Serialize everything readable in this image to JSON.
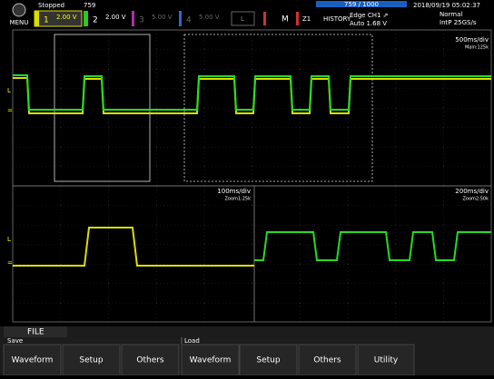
{
  "header": {
    "menu": "MENU",
    "state": "Stopped",
    "count": "759",
    "channels": [
      {
        "num": "1",
        "scale": "2.00 V"
      },
      {
        "num": "2",
        "scale": "2.00 V"
      },
      {
        "num": "3",
        "scale": "5.00 V"
      },
      {
        "num": "4",
        "scale": "5.00 V"
      }
    ],
    "logic": "L",
    "math": "M",
    "zoom": "Z1",
    "history": "HISTORY",
    "trigger_type": "Edge CH1 ⇗",
    "trigger_level": "Auto 1.68 V",
    "history_bar": "759 / 1000",
    "datetime": "2018/09/19 05:02:37",
    "acq_mode": "Normal",
    "sample": "IntP  25GS/s"
  },
  "main": {
    "timebase": "500ms/div",
    "points": "Main:125k"
  },
  "zoom1": {
    "timebase": "100ms/div",
    "points": "Zoom1:25k"
  },
  "zoom2": {
    "timebase": "200ms/div",
    "points": "Zoom2:50k"
  },
  "menu": {
    "tab": "FILE",
    "groups": [
      "Save",
      "Load"
    ],
    "buttons": [
      "Waveform",
      "Setup",
      "Others",
      "Waveform",
      "Setup",
      "Others",
      "Utility"
    ]
  }
}
